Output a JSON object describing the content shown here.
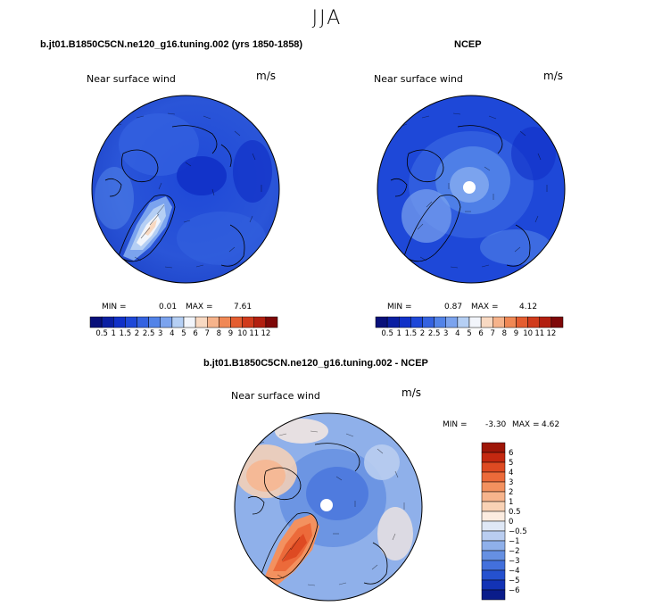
{
  "figure": {
    "season": "JJA"
  },
  "panels": [
    {
      "id": "model",
      "title": "b.jt01.B1850C5CN.ne120_g16.tuning.002 (yrs 1850-1858)",
      "label": "Near surface wind",
      "units": "m/s",
      "min_label": "MIN =",
      "min_value": "0.01",
      "max_label": "MAX =",
      "max_value": "7.61"
    },
    {
      "id": "ncep",
      "title": "NCEP",
      "label": "Near surface wind",
      "units": "m/s",
      "min_label": "MIN =",
      "min_value": "0.87",
      "max_label": "MAX =",
      "max_value": "4.12"
    },
    {
      "id": "diff",
      "title": "b.jt01.B1850C5CN.ne120_g16.tuning.002 - NCEP",
      "label": "Near surface wind",
      "units": "m/s",
      "min_label": "MIN =",
      "min_value": "-3.30",
      "max_label": "MAX =",
      "max_value": "4.62"
    }
  ],
  "chart_data": [
    {
      "type": "heatmap",
      "title": "b.jt01.B1850C5CN.ne120_g16.tuning.002 (yrs 1850-1858)",
      "subtitle": "Near surface wind",
      "units": "m/s",
      "projection": "north polar stereographic",
      "min": 0.01,
      "max": 7.61,
      "colorbar": {
        "orientation": "horizontal",
        "levels": [
          0.5,
          1,
          1.5,
          2,
          2.5,
          3,
          4,
          5,
          6,
          7,
          8,
          9,
          10,
          11,
          12
        ],
        "tick_labels": [
          "0.5",
          "1",
          "1.5",
          "2",
          "2.5",
          "3",
          "4",
          "5",
          "6",
          "7",
          "8",
          "9",
          "10",
          "11",
          "12"
        ],
        "colors": [
          "#08107a",
          "#0a1fa2",
          "#1131c8",
          "#1e48d8",
          "#3462e0",
          "#5283e8",
          "#7ba3ee",
          "#b5cff4",
          "#f2f5fb",
          "#f8d9c2",
          "#f6b38b",
          "#f08855",
          "#e45d30",
          "#d03b1c",
          "#b21f10",
          "#7e0808"
        ]
      }
    },
    {
      "type": "heatmap",
      "title": "NCEP",
      "subtitle": "Near surface wind",
      "units": "m/s",
      "projection": "north polar stereographic",
      "min": 0.87,
      "max": 4.12,
      "colorbar": {
        "orientation": "horizontal",
        "levels": [
          0.5,
          1,
          1.5,
          2,
          2.5,
          3,
          4,
          5,
          6,
          7,
          8,
          9,
          10,
          11,
          12
        ],
        "tick_labels": [
          "0.5",
          "1",
          "1.5",
          "2",
          "2.5",
          "3",
          "4",
          "5",
          "6",
          "7",
          "8",
          "9",
          "10",
          "11",
          "12"
        ],
        "colors": [
          "#08107a",
          "#0a1fa2",
          "#1131c8",
          "#1e48d8",
          "#3462e0",
          "#5283e8",
          "#7ba3ee",
          "#b5cff4",
          "#f2f5fb",
          "#f8d9c2",
          "#f6b38b",
          "#f08855",
          "#e45d30",
          "#d03b1c",
          "#b21f10",
          "#7e0808"
        ]
      }
    },
    {
      "type": "heatmap",
      "title": "b.jt01.B1850C5CN.ne120_g16.tuning.002 - NCEP",
      "subtitle": "Near surface wind",
      "units": "m/s",
      "projection": "north polar stereographic",
      "min": -3.3,
      "max": 4.62,
      "colorbar": {
        "orientation": "vertical",
        "levels": [
          6,
          5,
          4,
          3,
          2,
          1,
          0.5,
          0,
          -0.5,
          -1,
          -2,
          -3,
          -4,
          -5,
          -6
        ],
        "tick_labels": [
          "6",
          "5",
          "4",
          "3",
          "2",
          "1",
          "0.5",
          "0",
          "−0.5",
          "−1",
          "−2",
          "−3",
          "−4",
          "−5",
          "−6"
        ],
        "colors": [
          "#9e1608",
          "#c42810",
          "#de4a22",
          "#ec6a3a",
          "#f3915f",
          "#f7b48c",
          "#f9d2b5",
          "#fcece0",
          "#dfe8f6",
          "#b9cdf0",
          "#8fb0ea",
          "#6690e2",
          "#4370dc",
          "#2551cf",
          "#1333b5",
          "#0a1c8a"
        ]
      }
    }
  ]
}
